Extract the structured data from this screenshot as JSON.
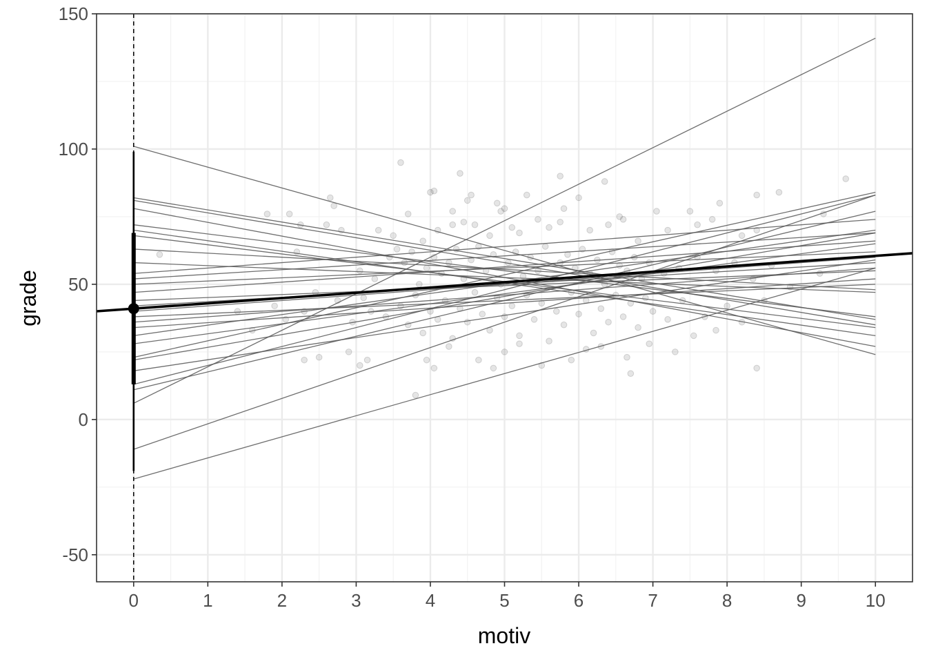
{
  "chart_data": {
    "type": "scatter",
    "xlabel": "motiv",
    "ylabel": "grade",
    "xlim": [
      -0.5,
      10.5
    ],
    "ylim": [
      -60,
      150
    ],
    "x_ticks": [
      0,
      1,
      2,
      3,
      4,
      5,
      6,
      7,
      8,
      9,
      10
    ],
    "x_tick_labels": [
      "0",
      "1",
      "2",
      "3",
      "4",
      "5",
      "6",
      "7",
      "8",
      "9",
      "10"
    ],
    "y_ticks": [
      -50,
      0,
      50,
      100,
      150
    ],
    "y_tick_labels": [
      "-50",
      "0",
      "50",
      "100",
      "150"
    ],
    "grid": true,
    "legend": "none",
    "reference_line": {
      "x": 0,
      "style": "dashed"
    },
    "intercept_estimate": {
      "x": 0,
      "y": 41,
      "inner_interval": [
        13,
        69
      ],
      "outer_interval": [
        -19,
        99
      ]
    },
    "fixed_effect_line": {
      "intercept": 41,
      "slope": 1.95
    },
    "group_lines": [
      {
        "x": [
          0,
          10
        ],
        "y": [
          101,
          24
        ]
      },
      {
        "x": [
          0,
          10
        ],
        "y": [
          82,
          37
        ]
      },
      {
        "x": [
          0,
          10
        ],
        "y": [
          81,
          35
        ]
      },
      {
        "x": [
          0,
          10
        ],
        "y": [
          78,
          27
        ]
      },
      {
        "x": [
          0,
          10
        ],
        "y": [
          72,
          38
        ]
      },
      {
        "x": [
          0,
          10
        ],
        "y": [
          70,
          31
        ]
      },
      {
        "x": [
          0,
          10
        ],
        "y": [
          68,
          34
        ]
      },
      {
        "x": [
          0,
          10
        ],
        "y": [
          63,
          48
        ]
      },
      {
        "x": [
          0,
          10
        ],
        "y": [
          58,
          47
        ]
      },
      {
        "x": [
          0,
          10
        ],
        "y": [
          54,
          74
        ]
      },
      {
        "x": [
          0,
          10
        ],
        "y": [
          52,
          69
        ]
      },
      {
        "x": [
          0,
          10
        ],
        "y": [
          50,
          62
        ]
      },
      {
        "x": [
          0,
          10
        ],
        "y": [
          47,
          66
        ]
      },
      {
        "x": [
          0,
          10
        ],
        "y": [
          44,
          55
        ]
      },
      {
        "x": [
          0,
          10
        ],
        "y": [
          42,
          58
        ]
      },
      {
        "x": [
          0,
          10
        ],
        "y": [
          40,
          60
        ]
      },
      {
        "x": [
          0,
          10
        ],
        "y": [
          38,
          50
        ]
      },
      {
        "x": [
          0,
          10
        ],
        "y": [
          36,
          56
        ]
      },
      {
        "x": [
          0,
          10
        ],
        "y": [
          34,
          52
        ]
      },
      {
        "x": [
          0,
          10
        ],
        "y": [
          31,
          70
        ]
      },
      {
        "x": [
          0,
          10
        ],
        "y": [
          28,
          65
        ]
      },
      {
        "x": [
          0,
          10
        ],
        "y": [
          23,
          84
        ]
      },
      {
        "x": [
          0,
          10
        ],
        "y": [
          22,
          69
        ]
      },
      {
        "x": [
          0,
          10
        ],
        "y": [
          18,
          59
        ]
      },
      {
        "x": [
          0,
          10
        ],
        "y": [
          13,
          83
        ]
      },
      {
        "x": [
          0,
          10
        ],
        "y": [
          11,
          77
        ]
      },
      {
        "x": [
          0,
          10
        ],
        "y": [
          6,
          141
        ]
      },
      {
        "x": [
          0,
          10
        ],
        "y": [
          -11,
          83
        ]
      },
      {
        "x": [
          0,
          10
        ],
        "y": [
          -22,
          56
        ]
      }
    ],
    "points": [
      [
        3.6,
        95
      ],
      [
        4.4,
        91
      ],
      [
        5.75,
        90
      ],
      [
        6.35,
        88
      ],
      [
        9.6,
        89
      ],
      [
        8.7,
        84
      ],
      [
        8.4,
        83
      ],
      [
        4.0,
        84
      ],
      [
        4.05,
        84.5
      ],
      [
        4.55,
        83
      ],
      [
        4.5,
        81
      ],
      [
        2.65,
        82
      ],
      [
        2.7,
        79
      ],
      [
        4.9,
        80
      ],
      [
        5.3,
        83
      ],
      [
        7.9,
        80
      ],
      [
        6.0,
        82
      ],
      [
        1.8,
        76
      ],
      [
        2.1,
        76
      ],
      [
        2.25,
        72
      ],
      [
        2.6,
        72
      ],
      [
        2.8,
        70
      ],
      [
        3.7,
        76
      ],
      [
        4.3,
        77
      ],
      [
        4.95,
        77
      ],
      [
        5.0,
        78
      ],
      [
        5.8,
        78
      ],
      [
        6.6,
        74
      ],
      [
        7.5,
        77
      ],
      [
        7.6,
        72
      ],
      [
        7.05,
        77
      ],
      [
        9.3,
        76
      ],
      [
        0.35,
        61
      ],
      [
        2.2,
        62
      ],
      [
        3.5,
        68
      ],
      [
        3.3,
        70
      ],
      [
        3.9,
        66
      ],
      [
        4.1,
        70
      ],
      [
        4.3,
        72
      ],
      [
        4.45,
        73
      ],
      [
        4.6,
        72
      ],
      [
        4.8,
        68
      ],
      [
        5.1,
        71
      ],
      [
        5.2,
        69
      ],
      [
        5.45,
        74
      ],
      [
        5.6,
        71
      ],
      [
        5.75,
        73
      ],
      [
        6.15,
        70
      ],
      [
        6.4,
        72
      ],
      [
        6.55,
        75
      ],
      [
        6.8,
        66
      ],
      [
        7.2,
        70
      ],
      [
        7.8,
        74
      ],
      [
        8.2,
        68
      ],
      [
        8.4,
        70
      ],
      [
        3.05,
        55
      ],
      [
        3.25,
        52
      ],
      [
        3.45,
        60
      ],
      [
        3.55,
        63
      ],
      [
        3.65,
        58
      ],
      [
        3.75,
        62
      ],
      [
        3.85,
        50
      ],
      [
        3.95,
        56
      ],
      [
        4.05,
        60
      ],
      [
        4.15,
        54
      ],
      [
        4.25,
        58
      ],
      [
        4.35,
        63
      ],
      [
        4.45,
        52
      ],
      [
        4.55,
        59
      ],
      [
        4.65,
        64
      ],
      [
        4.75,
        55
      ],
      [
        4.85,
        61
      ],
      [
        4.95,
        50
      ],
      [
        5.05,
        58
      ],
      [
        5.15,
        62
      ],
      [
        5.25,
        53
      ],
      [
        5.35,
        60
      ],
      [
        5.45,
        55
      ],
      [
        5.55,
        64
      ],
      [
        5.65,
        52
      ],
      [
        5.75,
        58
      ],
      [
        5.85,
        61
      ],
      [
        5.95,
        56
      ],
      [
        6.05,
        63
      ],
      [
        6.15,
        54
      ],
      [
        6.25,
        59
      ],
      [
        6.35,
        50
      ],
      [
        6.45,
        62
      ],
      [
        6.55,
        57
      ],
      [
        6.65,
        55
      ],
      [
        6.75,
        60
      ],
      [
        6.85,
        52
      ],
      [
        6.95,
        58
      ],
      [
        7.15,
        54
      ],
      [
        7.35,
        56
      ],
      [
        7.6,
        60
      ],
      [
        7.85,
        55
      ],
      [
        8.1,
        58
      ],
      [
        8.35,
        52
      ],
      [
        8.6,
        57
      ],
      [
        8.85,
        49
      ],
      [
        9.25,
        54
      ],
      [
        1.4,
        40
      ],
      [
        1.6,
        33
      ],
      [
        1.9,
        42
      ],
      [
        2.05,
        37
      ],
      [
        2.3,
        40
      ],
      [
        2.45,
        47
      ],
      [
        2.75,
        44
      ],
      [
        2.95,
        36
      ],
      [
        3.1,
        45
      ],
      [
        3.2,
        40
      ],
      [
        3.4,
        38
      ],
      [
        3.6,
        42
      ],
      [
        3.7,
        35
      ],
      [
        3.8,
        46
      ],
      [
        3.9,
        32
      ],
      [
        4.0,
        40
      ],
      [
        4.1,
        37
      ],
      [
        4.2,
        44
      ],
      [
        4.3,
        30
      ],
      [
        4.4,
        41
      ],
      [
        4.5,
        36
      ],
      [
        4.6,
        47
      ],
      [
        4.7,
        39
      ],
      [
        4.8,
        33
      ],
      [
        4.9,
        45
      ],
      [
        5.0,
        38
      ],
      [
        5.1,
        42
      ],
      [
        5.2,
        31
      ],
      [
        5.3,
        46
      ],
      [
        5.4,
        37
      ],
      [
        5.5,
        43
      ],
      [
        5.6,
        29
      ],
      [
        5.7,
        40
      ],
      [
        5.8,
        35
      ],
      [
        5.9,
        47
      ],
      [
        6.0,
        39
      ],
      [
        6.1,
        44
      ],
      [
        6.2,
        32
      ],
      [
        6.3,
        41
      ],
      [
        6.4,
        36
      ],
      [
        6.5,
        46
      ],
      [
        6.6,
        38
      ],
      [
        6.7,
        43
      ],
      [
        6.8,
        34
      ],
      [
        6.9,
        45
      ],
      [
        7.0,
        40
      ],
      [
        7.2,
        37
      ],
      [
        7.4,
        44
      ],
      [
        7.7,
        38
      ],
      [
        8.0,
        42
      ],
      [
        8.2,
        36
      ],
      [
        8.5,
        44
      ],
      [
        2.3,
        22
      ],
      [
        2.5,
        23
      ],
      [
        2.9,
        25
      ],
      [
        3.05,
        20
      ],
      [
        3.15,
        22
      ],
      [
        3.8,
        9
      ],
      [
        3.95,
        22
      ],
      [
        4.05,
        19
      ],
      [
        4.25,
        27
      ],
      [
        4.65,
        22
      ],
      [
        4.85,
        19
      ],
      [
        5.0,
        25
      ],
      [
        5.2,
        28
      ],
      [
        5.5,
        20
      ],
      [
        5.9,
        22
      ],
      [
        6.1,
        26
      ],
      [
        6.3,
        27
      ],
      [
        6.65,
        23
      ],
      [
        6.7,
        17
      ],
      [
        7.3,
        25
      ],
      [
        8.4,
        19
      ],
      [
        6.95,
        28
      ],
      [
        7.55,
        31
      ],
      [
        7.85,
        33
      ]
    ]
  }
}
